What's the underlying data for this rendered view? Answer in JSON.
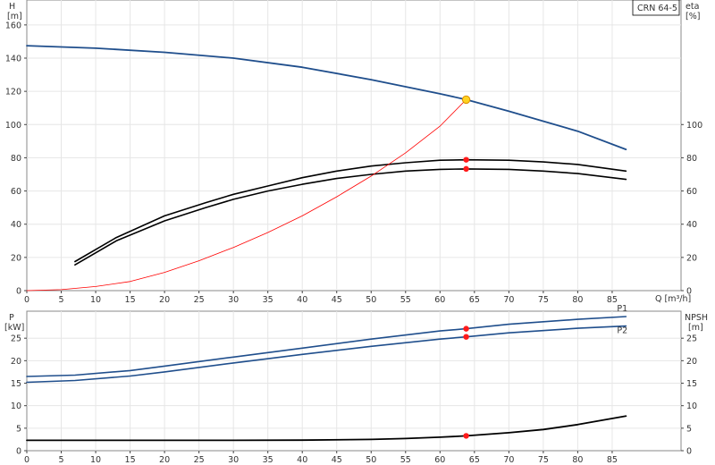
{
  "chart_data": [
    {
      "type": "line",
      "model": "CRN 64-5",
      "x_label": "Q [m³/h]",
      "x_ticks": [
        0,
        5,
        10,
        15,
        20,
        25,
        30,
        35,
        40,
        45,
        50,
        55,
        60,
        65,
        70,
        75,
        80,
        85
      ],
      "xlim": [
        0,
        95
      ],
      "left_axis": {
        "label_line1": "H",
        "label_line2": "[m]",
        "ticks": [
          0,
          20,
          40,
          60,
          80,
          100,
          120,
          140,
          160
        ],
        "ylim": [
          0,
          175
        ]
      },
      "right_axis": {
        "label_line1": "eta",
        "label_line2": "[%]",
        "ticks": [
          0,
          20,
          40,
          60,
          80,
          100
        ],
        "ylim": [
          0,
          175
        ]
      },
      "series": [
        {
          "id": "H",
          "axis": "left",
          "color": "#1f4e8c",
          "points": [
            [
              0,
              147.5
            ],
            [
              10,
              146
            ],
            [
              20,
              143.5
            ],
            [
              30,
              140
            ],
            [
              40,
              134.5
            ],
            [
              50,
              127
            ],
            [
              60,
              118.5
            ],
            [
              63.8,
              115
            ],
            [
              70,
              108
            ],
            [
              80,
              96
            ],
            [
              87,
              85
            ]
          ]
        },
        {
          "id": "eta1",
          "axis": "right",
          "color": "#000000",
          "points": [
            [
              7,
              17.5
            ],
            [
              13,
              32
            ],
            [
              20,
              45
            ],
            [
              26,
              53
            ],
            [
              30,
              58
            ],
            [
              35,
              63
            ],
            [
              40,
              68
            ],
            [
              45,
              72
            ],
            [
              50,
              75
            ],
            [
              55,
              77
            ],
            [
              60,
              78.5
            ],
            [
              63.8,
              78.8
            ],
            [
              70,
              78.5
            ],
            [
              75,
              77.5
            ],
            [
              80,
              76
            ],
            [
              87,
              72
            ]
          ]
        },
        {
          "id": "eta2",
          "axis": "right",
          "color": "#000000",
          "points": [
            [
              7,
              15.5
            ],
            [
              13,
              30
            ],
            [
              20,
              42
            ],
            [
              26,
              50
            ],
            [
              30,
              55
            ],
            [
              35,
              60
            ],
            [
              40,
              64
            ],
            [
              45,
              67.5
            ],
            [
              50,
              70
            ],
            [
              55,
              72
            ],
            [
              60,
              73
            ],
            [
              63.8,
              73.3
            ],
            [
              70,
              73
            ],
            [
              75,
              72
            ],
            [
              80,
              70.5
            ],
            [
              87,
              67
            ]
          ]
        },
        {
          "id": "system",
          "axis": "left",
          "color": "#ff0000",
          "points": [
            [
              0,
              0
            ],
            [
              5,
              0.6
            ],
            [
              10,
              2.5
            ],
            [
              15,
              5.5
            ],
            [
              20,
              11
            ],
            [
              25,
              18
            ],
            [
              30,
              26
            ],
            [
              35,
              35
            ],
            [
              40,
              45
            ],
            [
              45,
              56.5
            ],
            [
              50,
              69
            ],
            [
              55,
              83
            ],
            [
              60,
              99
            ],
            [
              63.8,
              115
            ]
          ]
        }
      ],
      "duty_point": {
        "q": 63.8,
        "h": 115
      },
      "markers_right": [
        {
          "q": 63.8,
          "v": 78.8
        },
        {
          "q": 63.8,
          "v": 73.3
        }
      ]
    },
    {
      "type": "line",
      "x_ticks": [
        0,
        5,
        10,
        15,
        20,
        25,
        30,
        35,
        40,
        45,
        50,
        55,
        60,
        65,
        70,
        75,
        80,
        85
      ],
      "xlim": [
        0,
        95
      ],
      "left_axis": {
        "label_line1": "P",
        "label_line2": "[kW]",
        "ticks": [
          0,
          5,
          10,
          15,
          20,
          25
        ],
        "ylim": [
          0,
          31
        ]
      },
      "right_axis": {
        "label_line1": "NPSH",
        "label_line2": "[m]",
        "ticks": [
          0,
          5,
          10,
          15,
          20,
          25
        ],
        "ylim": [
          0,
          31
        ]
      },
      "series": [
        {
          "id": "P1",
          "label": "P1",
          "axis": "left",
          "color": "#1f4e8c",
          "points": [
            [
              0,
              16.5
            ],
            [
              7,
              16.8
            ],
            [
              15,
              17.8
            ],
            [
              20,
              18.8
            ],
            [
              30,
              20.8
            ],
            [
              40,
              22.8
            ],
            [
              50,
              24.8
            ],
            [
              60,
              26.6
            ],
            [
              63.8,
              27.1
            ],
            [
              70,
              28.1
            ],
            [
              80,
              29.2
            ],
            [
              87,
              29.8
            ]
          ]
        },
        {
          "id": "P2",
          "label": "P2",
          "axis": "left",
          "color": "#1f4e8c",
          "points": [
            [
              0,
              15.2
            ],
            [
              7,
              15.6
            ],
            [
              15,
              16.6
            ],
            [
              20,
              17.5
            ],
            [
              30,
              19.5
            ],
            [
              40,
              21.4
            ],
            [
              50,
              23.2
            ],
            [
              60,
              24.8
            ],
            [
              63.8,
              25.3
            ],
            [
              70,
              26.2
            ],
            [
              80,
              27.2
            ],
            [
              87,
              27.7
            ]
          ]
        },
        {
          "id": "NPSH",
          "axis": "right",
          "color": "#000000",
          "points": [
            [
              0,
              2.3
            ],
            [
              30,
              2.3
            ],
            [
              40,
              2.35
            ],
            [
              50,
              2.5
            ],
            [
              55,
              2.7
            ],
            [
              60,
              3.0
            ],
            [
              63.8,
              3.3
            ],
            [
              70,
              4.0
            ],
            [
              75,
              4.7
            ],
            [
              80,
              5.8
            ],
            [
              87,
              7.7
            ]
          ]
        }
      ],
      "markers": [
        {
          "q": 63.8,
          "v": 27.1
        },
        {
          "q": 63.8,
          "v": 25.3
        },
        {
          "q": 63.8,
          "v": 3.3
        }
      ]
    }
  ]
}
